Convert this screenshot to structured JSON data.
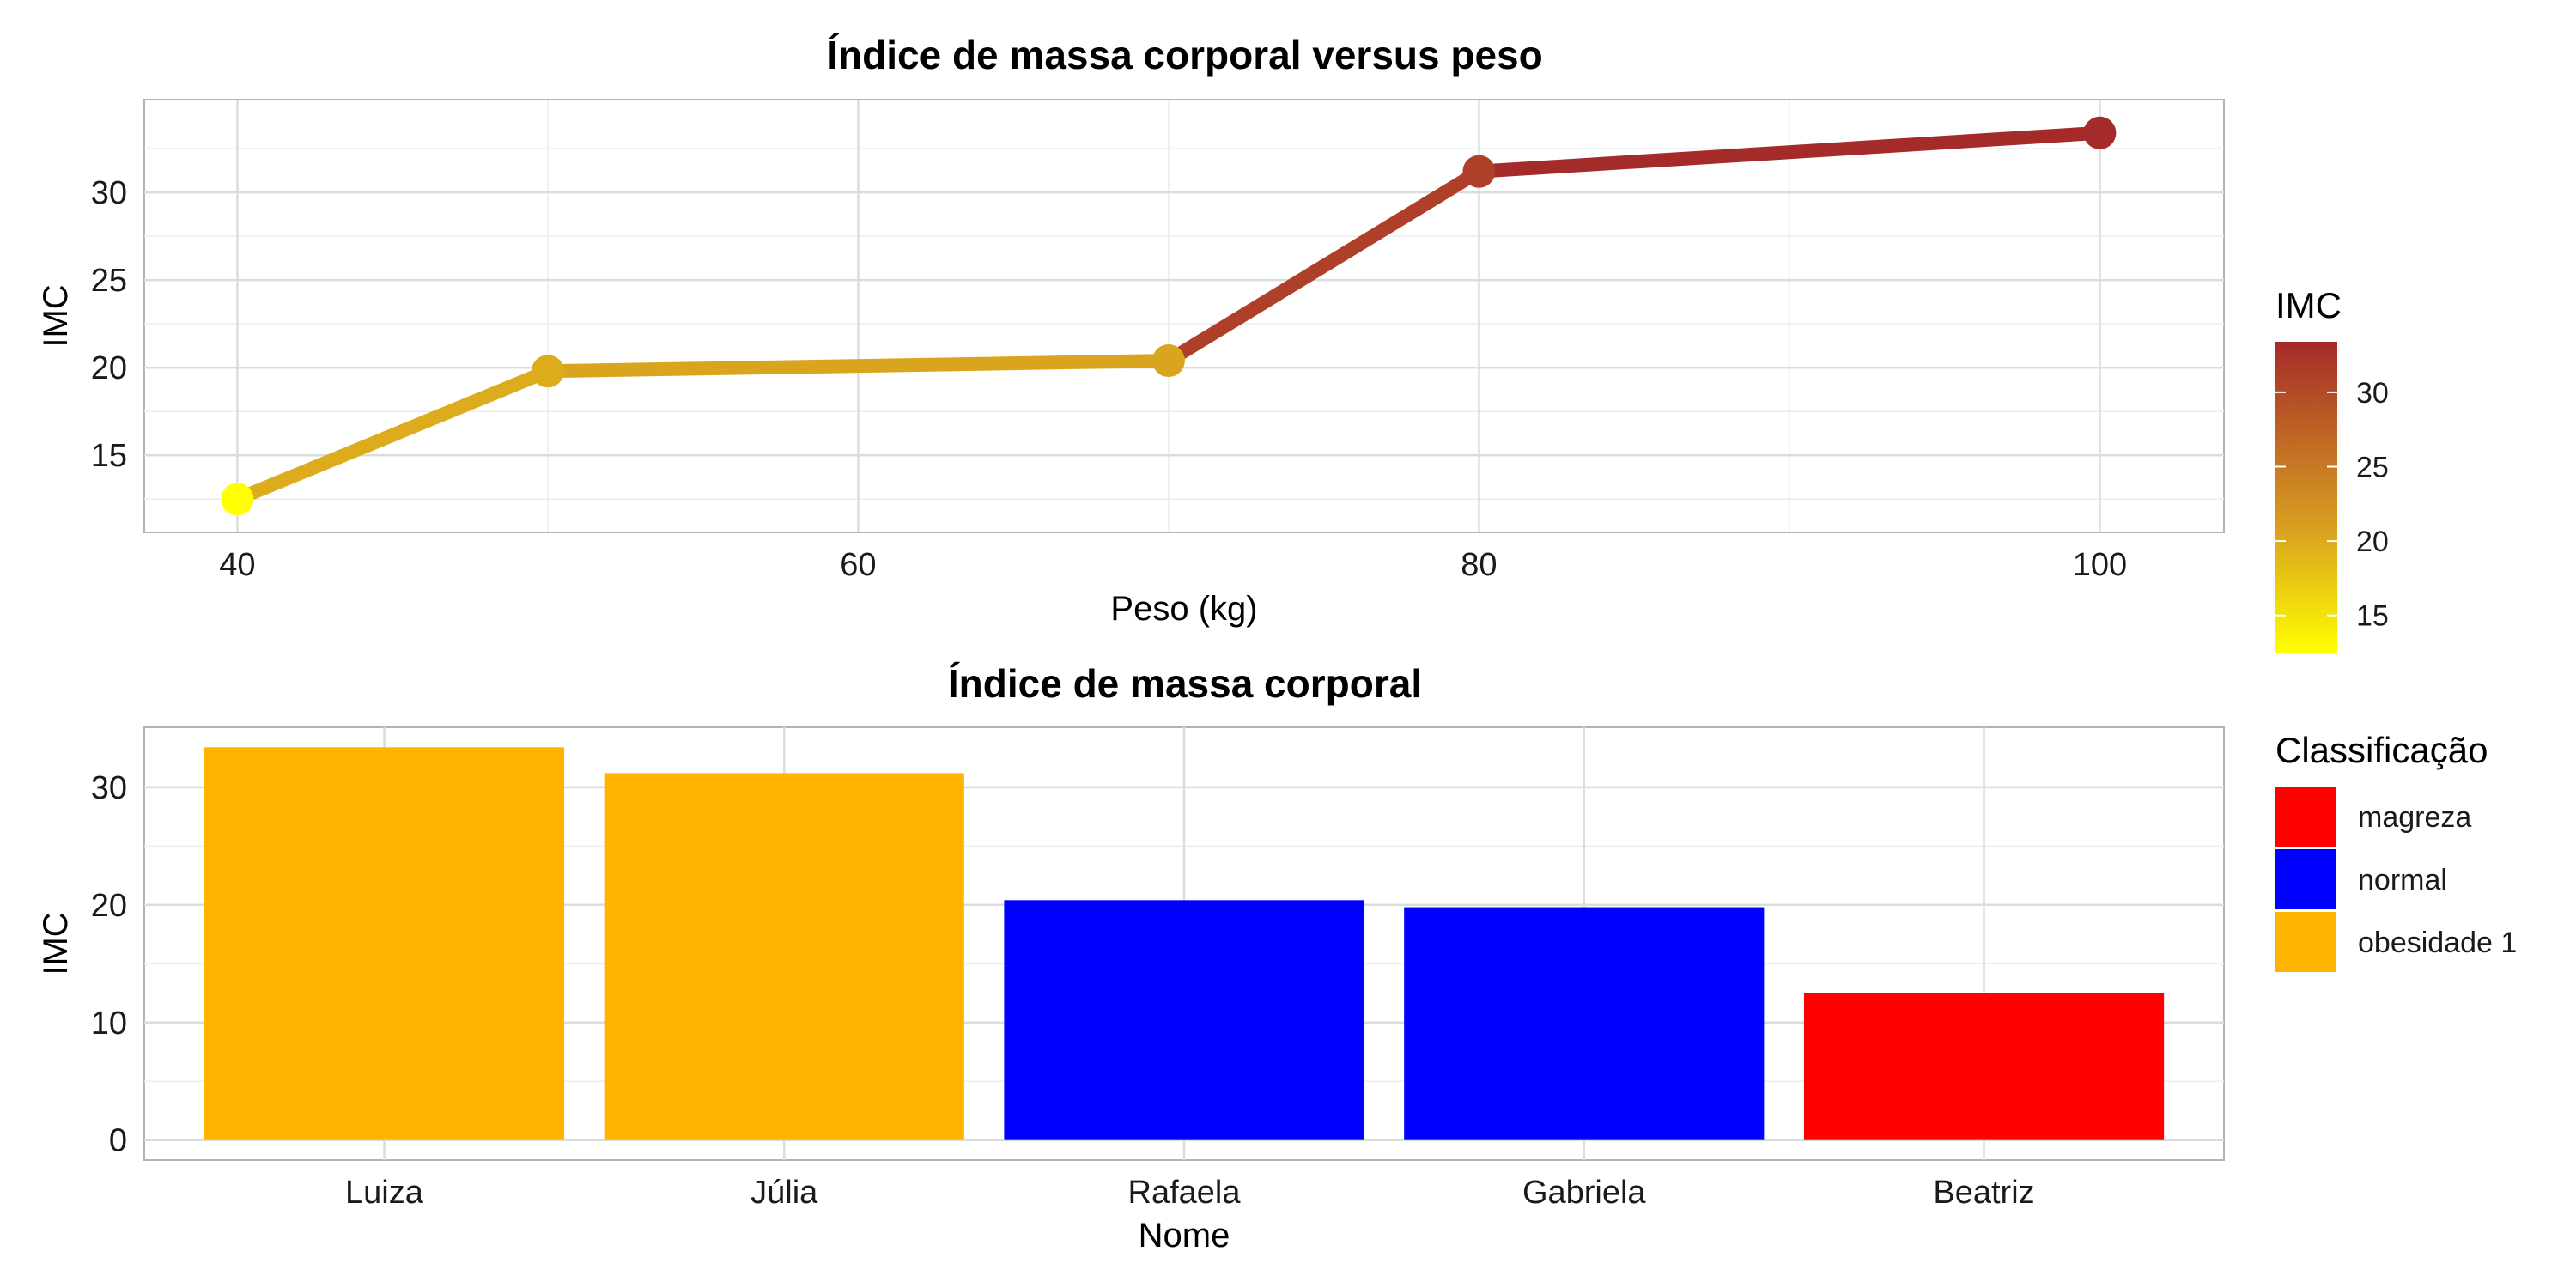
{
  "chart_data": [
    {
      "type": "line",
      "title": "Índice de massa corporal versus peso",
      "xlabel": "Peso (kg)",
      "ylabel": "IMC",
      "x": [
        40,
        50,
        70,
        80,
        100
      ],
      "y": [
        12.5,
        19.8,
        20.4,
        31.2,
        33.4
      ],
      "xlim": [
        37,
        104
      ],
      "ylim": [
        10.6,
        35.3
      ],
      "xticks": [
        40,
        60,
        80,
        100
      ],
      "yticks": [
        15,
        20,
        25,
        30
      ],
      "grid": true,
      "color_scale": {
        "title": "IMC",
        "low_color": "#ffff00",
        "mid_color": "#d8a020",
        "high_color": "#a52a2a",
        "range": [
          12.5,
          33.4
        ],
        "ticks": [
          15,
          20,
          25,
          30
        ]
      },
      "legend_position": "right"
    },
    {
      "type": "bar",
      "title": "Índice de massa corporal",
      "xlabel": "Nome",
      "ylabel": "IMC",
      "categories": [
        "Luiza",
        "Júlia",
        "Rafaela",
        "Gabriela",
        "Beatriz"
      ],
      "values": [
        33.4,
        31.2,
        20.4,
        19.8,
        12.5
      ],
      "classes": [
        "obesidade 1",
        "obesidade 1",
        "normal",
        "normal",
        "magreza"
      ],
      "ylim": [
        -1.7,
        35.1
      ],
      "yticks": [
        0,
        10,
        20,
        30
      ],
      "grid": true,
      "legend": {
        "title": "Classificação",
        "entries": [
          {
            "label": "magreza",
            "color": "#ff0000"
          },
          {
            "label": "normal",
            "color": "#0000ff"
          },
          {
            "label": "obesidade 1",
            "color": "#ffb400"
          }
        ]
      },
      "legend_position": "right"
    }
  ]
}
